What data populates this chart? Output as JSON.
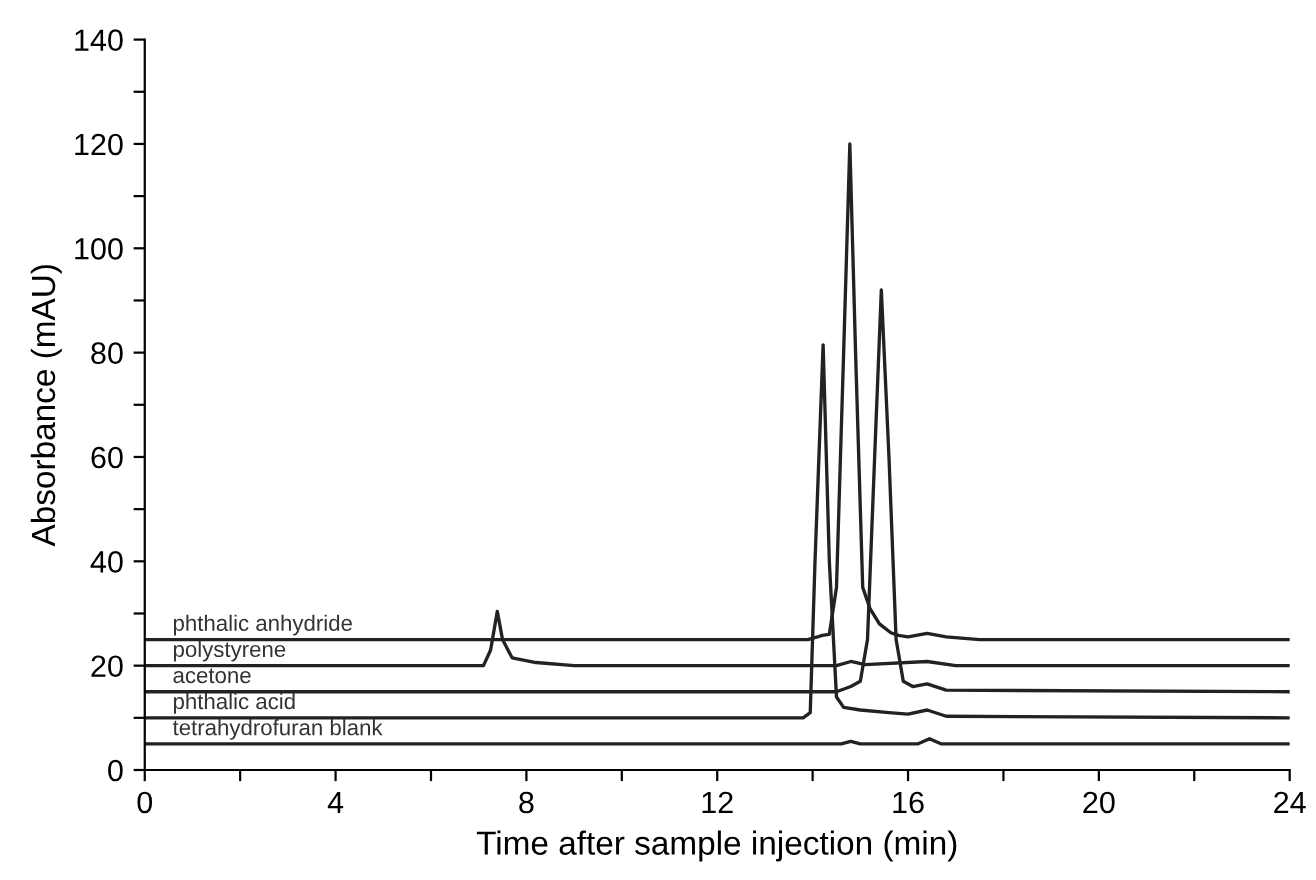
{
  "chart_data": {
    "type": "line",
    "xlabel": "Time after sample injection (min)",
    "ylabel": "Absorbance (mAU)",
    "xlim": [
      0,
      24
    ],
    "ylim": [
      0,
      140
    ],
    "xticks": [
      0,
      {
        "value": 2,
        "label": null
      },
      4,
      {
        "value": 6,
        "label": null
      },
      8,
      {
        "value": 10,
        "label": null
      },
      12,
      {
        "value": 14,
        "label": null
      },
      16,
      {
        "value": 18,
        "label": null
      },
      20,
      {
        "value": 22,
        "label": null
      },
      24
    ],
    "yticks": [
      0,
      {
        "value": 10,
        "label": null
      },
      20,
      {
        "value": 30,
        "label": null
      },
      40,
      {
        "value": 50,
        "label": null
      },
      60,
      {
        "value": 70,
        "label": null
      },
      80,
      {
        "value": 90,
        "label": null
      },
      100,
      {
        "value": 110,
        "label": null
      },
      120,
      {
        "value": 130,
        "label": null
      },
      140
    ],
    "grid": false,
    "legend": false,
    "marker": "none",
    "line_style": "solid",
    "series": [
      {
        "name": "phthalic anhydride",
        "color": "#222222",
        "x": [
          0,
          13.9,
          14.1,
          14.2,
          14.35,
          14.5,
          14.65,
          14.78,
          14.9,
          15.05,
          15.2,
          15.4,
          15.64,
          15.8,
          16.0,
          16.4,
          16.8,
          17.5,
          24
        ],
        "values": [
          25,
          25,
          25.5,
          25.8,
          26,
          35,
          80,
          120,
          80,
          35,
          31,
          28,
          26.3,
          25.8,
          25.5,
          26.2,
          25.5,
          25,
          25
        ]
      },
      {
        "name": "polystyrene",
        "color": "#222222",
        "x": [
          0,
          7.1,
          7.25,
          7.39,
          7.5,
          7.7,
          8.2,
          9,
          14.5,
          14.8,
          15.1,
          16.4,
          17,
          24
        ],
        "values": [
          20,
          20,
          23,
          30.4,
          25,
          21.5,
          20.6,
          20,
          20,
          20.8,
          20.2,
          20.8,
          20,
          20
        ]
      },
      {
        "name": "acetone",
        "color": "#222222",
        "x": [
          0,
          14.5,
          14.8,
          15.0,
          15.15,
          15.3,
          15.44,
          15.6,
          15.75,
          15.9,
          16.1,
          16.4,
          16.8,
          24
        ],
        "values": [
          15,
          15,
          16,
          17,
          25,
          60,
          92,
          60,
          25,
          17,
          16,
          16.5,
          15.3,
          15
        ]
      },
      {
        "name": "phthalic acid",
        "color": "#222222",
        "x": [
          0,
          13.8,
          13.95,
          14.05,
          14.22,
          14.35,
          14.5,
          14.65,
          15.0,
          15.6,
          16.0,
          16.4,
          16.8,
          24
        ],
        "values": [
          10,
          10,
          11,
          40,
          81.5,
          40,
          14,
          12,
          11.5,
          11,
          10.7,
          11.5,
          10.3,
          10
        ]
      },
      {
        "name": "tetrahydrofuran blank",
        "color": "#222222",
        "x": [
          0,
          14.6,
          14.8,
          15.0,
          16.2,
          16.45,
          16.7,
          24
        ],
        "values": [
          5,
          5,
          5.5,
          5,
          5,
          6,
          5,
          5
        ]
      }
    ]
  }
}
